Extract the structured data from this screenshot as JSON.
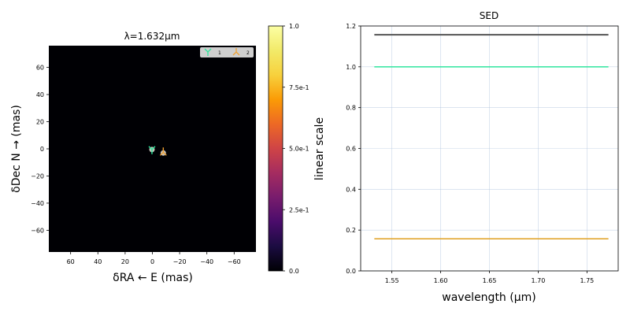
{
  "chart_data": [
    {
      "type": "scatter",
      "title": "λ=1.632μm",
      "xlabel": "δRA ← E (mas)",
      "ylabel": "δDec N → (mas)",
      "xlim": [
        76,
        -76
      ],
      "ylim": [
        -76,
        76
      ],
      "xticks": [
        60,
        40,
        20,
        0,
        -20,
        -40,
        -60
      ],
      "xtick_labels": [
        "60",
        "40",
        "20",
        "0",
        "−20",
        "−40",
        "−60"
      ],
      "yticks": [
        60,
        40,
        20,
        0,
        -20,
        -40,
        -60
      ],
      "ytick_labels": [
        "60",
        "40",
        "20",
        "0",
        "−20",
        "−40",
        "−60"
      ],
      "background": "#000004",
      "legend_placement": "top-right",
      "series": [
        {
          "name": "1",
          "x": [
            0.3
          ],
          "y": [
            -0.5
          ],
          "color": "#2ee59d",
          "marker": "tri-down"
        },
        {
          "name": "2",
          "x": [
            -8
          ],
          "y": [
            -2.5
          ],
          "color": "#f0a030",
          "marker": "tri-up"
        }
      ],
      "colorbar": {
        "label": "linear scale",
        "range": [
          0,
          1
        ],
        "ticks": [
          0,
          0.25,
          0.5,
          0.75,
          1.0
        ],
        "tick_labels": [
          "0.0",
          "2.5e-1",
          "5.0e-1",
          "7.5e-1",
          "1.0"
        ],
        "colormap": "inferno"
      }
    },
    {
      "type": "line",
      "title": "SED",
      "xlabel": "wavelength (μm)",
      "ylabel": "",
      "xlim": [
        1.518,
        1.782
      ],
      "ylim": [
        0.0,
        1.2
      ],
      "xticks": [
        1.55,
        1.6,
        1.65,
        1.7,
        1.75
      ],
      "xtick_labels": [
        "1.55",
        "1.60",
        "1.65",
        "1.70",
        "1.75"
      ],
      "yticks": [
        0.0,
        0.2,
        0.4,
        0.6,
        0.8,
        1.0,
        1.2
      ],
      "ytick_labels": [
        "0.0",
        "0.2",
        "0.4",
        "0.6",
        "0.8",
        "1.0",
        "1.2"
      ],
      "grid": true,
      "series": [
        {
          "x": [
            1.532,
            1.772
          ],
          "y": [
            1.157,
            1.157
          ],
          "color": "#555555",
          "width": 2
        },
        {
          "x": [
            1.532,
            1.772
          ],
          "y": [
            1.0,
            1.0
          ],
          "color": "#2ee59d",
          "width": 1.5
        },
        {
          "x": [
            1.532,
            1.772
          ],
          "y": [
            0.157,
            0.157
          ],
          "color": "#e0a020",
          "width": 1.5
        }
      ]
    }
  ]
}
